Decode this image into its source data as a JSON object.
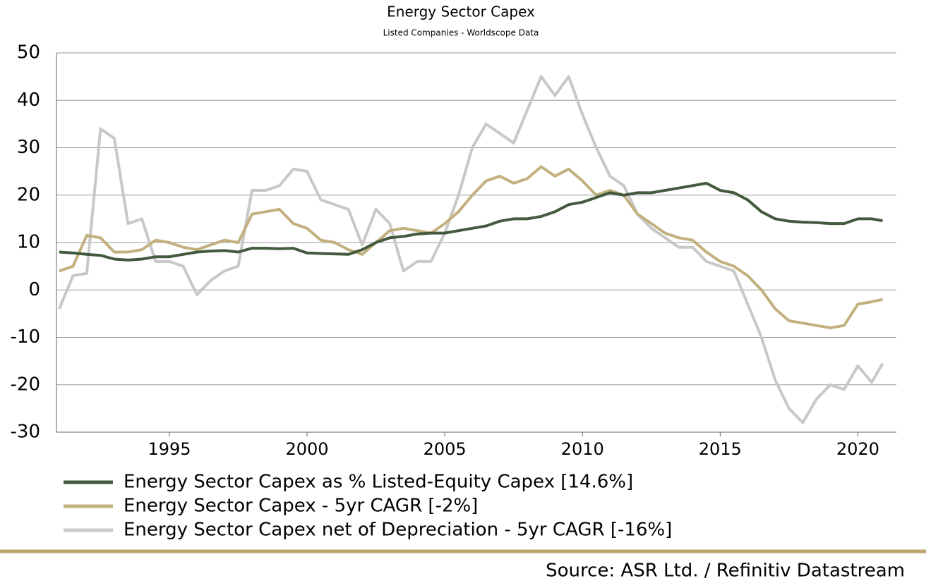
{
  "chart_data": {
    "type": "line",
    "title": "Energy Sector Capex",
    "subtitle": "Listed Companies - Worldscope Data",
    "source": "Source: ASR Ltd. / Refinitiv Datastream",
    "x": [
      1991,
      1991.5,
      1992,
      1992.5,
      1993,
      1993.5,
      1994,
      1994.5,
      1995,
      1995.5,
      1996,
      1996.5,
      1997,
      1997.5,
      1998,
      1998.5,
      1999,
      1999.5,
      2000,
      2000.5,
      2001,
      2001.5,
      2002,
      2002.5,
      2003,
      2003.5,
      2004,
      2004.5,
      2005,
      2005.5,
      2006,
      2006.5,
      2007,
      2007.5,
      2008,
      2008.5,
      2009,
      2009.5,
      2010,
      2010.5,
      2011,
      2011.5,
      2012,
      2012.5,
      2013,
      2013.5,
      2014,
      2014.5,
      2015,
      2015.5,
      2016,
      2016.5,
      2017,
      2017.5,
      2018,
      2018.5,
      2019,
      2019.5,
      2020,
      2020.5,
      2020.9
    ],
    "series": [
      {
        "name": "Energy Sector Capex as % Listed-Equity Capex [14.6%]",
        "color": "#435a3f",
        "values": [
          8,
          7.8,
          7.5,
          7.3,
          6.5,
          6.3,
          6.5,
          7,
          7,
          7.5,
          8,
          8.2,
          8.3,
          8,
          8.8,
          8.8,
          8.7,
          8.8,
          7.8,
          7.7,
          7.6,
          7.5,
          8.5,
          10,
          11,
          11.3,
          11.8,
          12,
          12,
          12.5,
          13,
          13.5,
          14.5,
          15,
          15,
          15.5,
          16.5,
          18,
          18.5,
          19.5,
          20.5,
          20,
          20.5,
          20.5,
          21,
          21.5,
          22,
          22.5,
          21,
          20.5,
          19,
          16.5,
          15,
          14.5,
          14.3,
          14.2,
          14,
          14,
          15,
          15,
          14.6
        ]
      },
      {
        "name": "Energy Sector Capex - 5yr CAGR [-2%]",
        "color": "#c2b07e",
        "values": [
          4,
          5,
          11.5,
          11,
          8,
          8,
          8.5,
          10.5,
          10,
          9,
          8.5,
          9.5,
          10.5,
          10,
          16,
          16.5,
          17,
          14,
          13,
          10.5,
          10,
          8.5,
          7.5,
          10,
          12.5,
          13,
          12.5,
          12,
          14,
          16.5,
          20,
          23,
          24,
          22.5,
          23.5,
          26,
          24,
          25.5,
          23,
          20,
          21,
          20,
          16,
          14,
          12,
          11,
          10.5,
          8,
          6,
          5,
          3,
          0,
          -4,
          -6.5,
          -7,
          -7.5,
          -8,
          -7.5,
          -3,
          -2.5,
          -2
        ]
      },
      {
        "name": "Energy Sector Capex net of Depreciation - 5yr CAGR [-16%]",
        "color": "#c8c8c8",
        "values": [
          -4,
          3,
          3.5,
          34,
          32,
          14,
          15,
          6,
          6,
          5,
          -1,
          2,
          4,
          5,
          21,
          21,
          22,
          25.5,
          25,
          19,
          18,
          17,
          9.5,
          17,
          14,
          4,
          6,
          6,
          12,
          20,
          30,
          35,
          33,
          31,
          38,
          45,
          41,
          45,
          37,
          30,
          24,
          22,
          16,
          13,
          11,
          9,
          9,
          6,
          5,
          4,
          -3,
          -10,
          -19,
          -25,
          -28,
          -23,
          -20,
          -21,
          -16,
          -19.5,
          -15.5
        ]
      }
    ],
    "xlim": [
      1990.9,
      2021.4
    ],
    "xticks": [
      1995,
      2000,
      2005,
      2010,
      2015,
      2020
    ],
    "ylim": [
      -30,
      50
    ],
    "yticks": [
      -30,
      -20,
      -10,
      0,
      10,
      20,
      30,
      40,
      50
    ],
    "grid": true
  }
}
